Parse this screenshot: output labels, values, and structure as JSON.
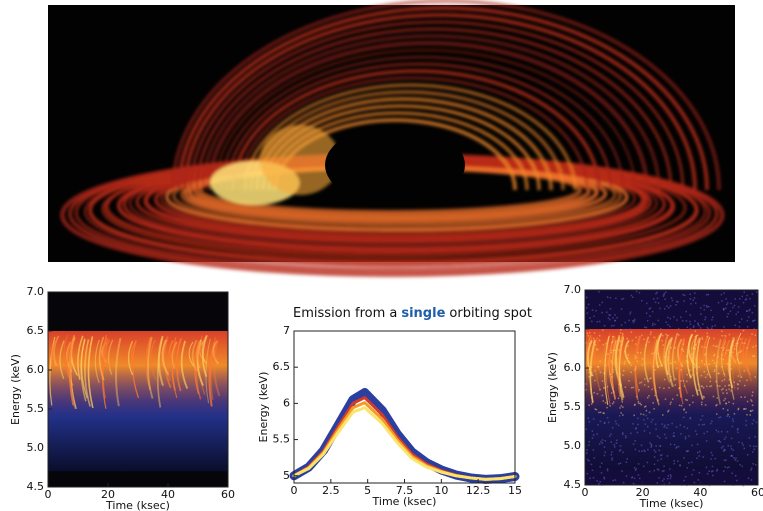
{
  "chart_data": [
    {
      "type": "spectrogram",
      "palette": "cold-hot",
      "xlabel": "Time (ksec)",
      "ylabel": "Energy (keV)",
      "xlim": [
        0,
        60
      ],
      "xticks": [
        0,
        20,
        40,
        60
      ],
      "ylim": [
        4.5,
        7
      ],
      "yticks": [
        4.5,
        {
          "value": 5,
          "label": "5.0"
        },
        5.5,
        {
          "value": 6,
          "label": "6.0"
        },
        6.5,
        {
          "value": 7,
          "label": "7.0"
        }
      ]
    },
    {
      "type": "line",
      "title": [
        "Emission from a",
        "single",
        "orbiting spot"
      ],
      "xlabel": "Time (ksec)",
      "ylabel": "Energy (keV)",
      "xlim": [
        0,
        15
      ],
      "xticks": [
        0,
        2.5,
        5,
        7.5,
        10,
        12.5,
        15
      ],
      "ylim": [
        4.9,
        7
      ],
      "yticks": [
        5,
        5.5,
        6,
        6.5,
        7
      ],
      "x": [
        0,
        1,
        2,
        3,
        4,
        4.8,
        6,
        7,
        8,
        9,
        10,
        11,
        12,
        13,
        14,
        15
      ],
      "series": [
        {
          "color": "#2b3f9e",
          "values": [
            5.0,
            5.12,
            5.35,
            5.7,
            6.05,
            6.15,
            5.9,
            5.58,
            5.33,
            5.18,
            5.08,
            5.01,
            4.97,
            4.95,
            4.96,
            4.99
          ]
        },
        {
          "color": "#d23a2a",
          "values": [
            5.0,
            5.12,
            5.34,
            5.68,
            6.0,
            6.08,
            5.84,
            5.54,
            5.3,
            5.16,
            5.07,
            5.01,
            4.97,
            4.95,
            4.96,
            4.99
          ]
        },
        {
          "color": "#f59a2a",
          "values": [
            5.0,
            5.11,
            5.32,
            5.64,
            5.94,
            6.01,
            5.78,
            5.5,
            5.27,
            5.14,
            5.06,
            5.0,
            4.97,
            4.95,
            4.96,
            4.99
          ]
        },
        {
          "color": "#fbe46a",
          "values": [
            5.0,
            5.1,
            5.3,
            5.6,
            5.88,
            5.94,
            5.72,
            5.46,
            5.24,
            5.12,
            5.05,
            5.0,
            4.97,
            4.95,
            4.96,
            4.99
          ]
        }
      ]
    },
    {
      "type": "spectrogram",
      "palette": "noisy-hot",
      "xlabel": "Time (ksec)",
      "ylabel": "Energy (keV)",
      "xlim": [
        0,
        60
      ],
      "xticks": [
        0,
        20,
        40,
        60
      ],
      "ylim": [
        4.5,
        7
      ],
      "yticks": [
        4.5,
        {
          "value": 5,
          "label": "5.0"
        },
        5.5,
        {
          "value": 6,
          "label": "6.0"
        },
        6.5,
        {
          "value": 7,
          "label": "7.0"
        }
      ]
    }
  ]
}
